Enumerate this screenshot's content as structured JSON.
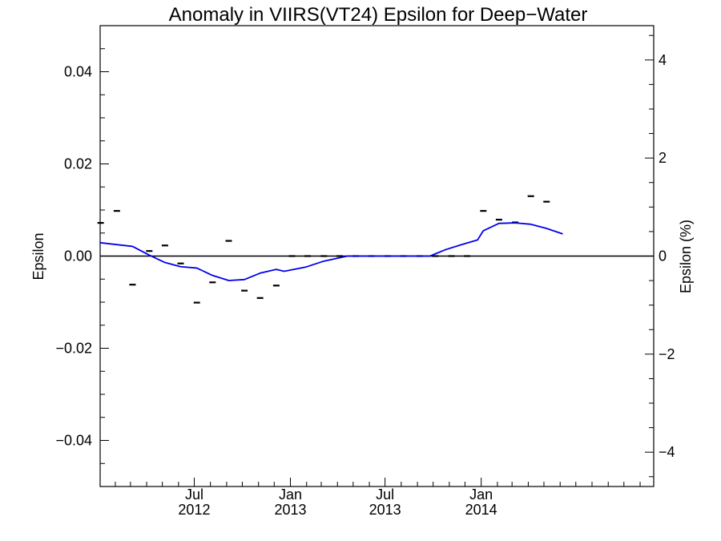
{
  "chart_data": {
    "type": "line",
    "title": "Anomaly in VIIRS(VT24) Epsilon for Deep−Water",
    "ylabel": "Epsilon",
    "y2label": "Epsilon (%)",
    "ylim": [
      -0.05,
      0.05
    ],
    "y2lim": [
      -4.7,
      4.7
    ],
    "y_ticks": [
      {
        "value": 0.04,
        "label": "0.04"
      },
      {
        "value": 0.02,
        "label": "0.02"
      },
      {
        "value": 0.0,
        "label": "0.00"
      },
      {
        "value": -0.02,
        "label": "−0.02"
      },
      {
        "value": -0.04,
        "label": "−0.04"
      }
    ],
    "y2_ticks": [
      {
        "value": 4,
        "label": "4"
      },
      {
        "value": 2,
        "label": "2"
      },
      {
        "value": 0,
        "label": "0"
      },
      {
        "value": -2,
        "label": "−2"
      },
      {
        "value": -4,
        "label": "−4"
      }
    ],
    "xlim": [
      "2012-01-03",
      "2014-11-27"
    ],
    "x_ticks": [
      {
        "value": "2012-07-01",
        "month": "Jul",
        "year": "2012"
      },
      {
        "value": "2013-01-01",
        "month": "Jan",
        "year": "2013"
      },
      {
        "value": "2013-07-01",
        "month": "Jul",
        "year": "2013"
      },
      {
        "value": "2014-01-01",
        "month": "Jan",
        "year": "2014"
      }
    ],
    "zero_line": 0,
    "grid": false,
    "series": [
      {
        "kind": "markers",
        "color": "#000000",
        "points": [
          {
            "x": "2012-01-04",
            "y": 0.0072
          },
          {
            "x": "2012-02-04",
            "y": 0.0098
          },
          {
            "x": "2012-03-05",
            "y": -0.0062
          },
          {
            "x": "2012-04-06",
            "y": 0.0011
          },
          {
            "x": "2012-05-06",
            "y": 0.0023
          },
          {
            "x": "2012-06-05",
            "y": -0.0016
          },
          {
            "x": "2012-07-06",
            "y": -0.0101
          },
          {
            "x": "2012-08-05",
            "y": -0.0057
          },
          {
            "x": "2012-09-05",
            "y": 0.0033
          },
          {
            "x": "2012-10-05",
            "y": -0.0075
          },
          {
            "x": "2012-11-04",
            "y": -0.0091
          },
          {
            "x": "2012-12-05",
            "y": -0.0064
          },
          {
            "x": "2013-01-04",
            "y": 0.0
          },
          {
            "x": "2013-02-03",
            "y": 0.0
          },
          {
            "x": "2013-03-06",
            "y": 0.0
          },
          {
            "x": "2013-04-05",
            "y": 0.0
          },
          {
            "x": "2013-05-06",
            "y": 0.0
          },
          {
            "x": "2013-06-05",
            "y": 0.0
          },
          {
            "x": "2013-07-06",
            "y": 0.0
          },
          {
            "x": "2013-08-05",
            "y": 0.0
          },
          {
            "x": "2013-09-05",
            "y": 0.0
          },
          {
            "x": "2013-10-05",
            "y": 0.0
          },
          {
            "x": "2013-11-05",
            "y": 0.0
          },
          {
            "x": "2013-12-05",
            "y": 0.0
          },
          {
            "x": "2014-01-05",
            "y": 0.0098
          },
          {
            "x": "2014-02-04",
            "y": 0.0079
          },
          {
            "x": "2014-03-07",
            "y": 0.0073
          },
          {
            "x": "2014-04-06",
            "y": 0.013
          },
          {
            "x": "2014-05-06",
            "y": 0.0118
          }
        ]
      },
      {
        "kind": "line",
        "color": "#0000ee",
        "points": [
          {
            "x": "2012-01-03",
            "y": 0.0029
          },
          {
            "x": "2012-03-05",
            "y": 0.0021
          },
          {
            "x": "2012-04-06",
            "y": 0.0002
          },
          {
            "x": "2012-05-06",
            "y": -0.0014
          },
          {
            "x": "2012-06-05",
            "y": -0.0023
          },
          {
            "x": "2012-07-06",
            "y": -0.0026
          },
          {
            "x": "2012-08-05",
            "y": -0.0042
          },
          {
            "x": "2012-09-05",
            "y": -0.0053
          },
          {
            "x": "2012-10-05",
            "y": -0.0051
          },
          {
            "x": "2012-11-04",
            "y": -0.0037
          },
          {
            "x": "2012-12-05",
            "y": -0.0029
          },
          {
            "x": "2012-12-20",
            "y": -0.0033
          },
          {
            "x": "2013-01-30",
            "y": -0.0024
          },
          {
            "x": "2013-03-06",
            "y": -0.0011
          },
          {
            "x": "2013-04-20",
            "y": 0.0
          },
          {
            "x": "2013-09-25",
            "y": 0.0
          },
          {
            "x": "2013-10-25",
            "y": 0.0014
          },
          {
            "x": "2013-11-25",
            "y": 0.0025
          },
          {
            "x": "2013-12-25",
            "y": 0.0035
          },
          {
            "x": "2014-01-05",
            "y": 0.0055
          },
          {
            "x": "2014-02-04",
            "y": 0.0071
          },
          {
            "x": "2014-03-07",
            "y": 0.0072
          },
          {
            "x": "2014-04-06",
            "y": 0.0069
          },
          {
            "x": "2014-05-06",
            "y": 0.006
          },
          {
            "x": "2014-06-06",
            "y": 0.0048
          }
        ]
      }
    ]
  }
}
